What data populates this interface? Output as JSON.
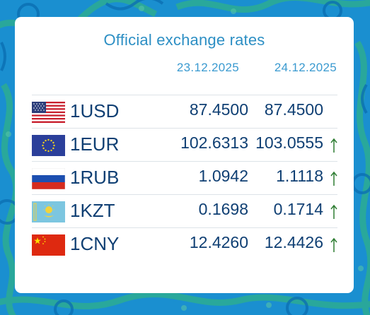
{
  "title": "Official exchange rates",
  "dates": [
    "23.12.2025",
    "24.12.2025"
  ],
  "rates": [
    {
      "code": "1USD",
      "flag_icon": "us-flag-icon",
      "rate1": "87.4500",
      "rate2": "87.4500",
      "trend": "none"
    },
    {
      "code": "1EUR",
      "flag_icon": "eu-flag-icon",
      "rate1": "102.6313",
      "rate2": "103.0555",
      "trend": "up"
    },
    {
      "code": "1RUB",
      "flag_icon": "ru-flag-icon",
      "rate1": "1.0942",
      "rate2": "1.1118",
      "trend": "up"
    },
    {
      "code": "1KZT",
      "flag_icon": "kz-flag-icon",
      "rate1": "0.1698",
      "rate2": "0.1714",
      "trend": "up"
    },
    {
      "code": "1CNY",
      "flag_icon": "cn-flag-icon",
      "rate1": "12.4260",
      "rate2": "12.4426",
      "trend": "up"
    }
  ],
  "colors": {
    "text": "#0f3f73",
    "accent": "#2d8fc4",
    "up_arrow": "#2e7d32",
    "background": "#1a8fd0"
  }
}
